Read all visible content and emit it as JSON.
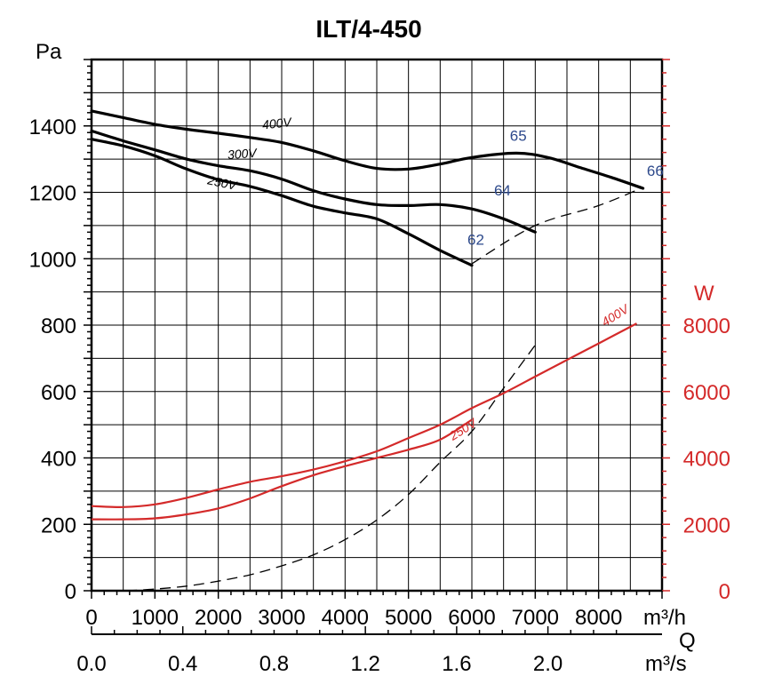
{
  "chart_data": {
    "type": "line",
    "title": "ILT/4-450",
    "ylabel": "Pa",
    "ylabel_right": "W",
    "xlabel_flow_label": "Q",
    "xlabel_m3h": "m³/h",
    "xlabel_m3s": "m³/s",
    "xlim": [
      0,
      9000
    ],
    "ylim": [
      0,
      1600
    ],
    "y2lim": [
      0,
      16000
    ],
    "y_ticks": [
      0,
      200,
      400,
      600,
      800,
      1000,
      1200,
      1400
    ],
    "y2_ticks": [
      0,
      2000,
      4000,
      6000,
      8000
    ],
    "x_ticks": [
      0,
      1000,
      2000,
      3000,
      4000,
      5000,
      6000,
      7000,
      8000
    ],
    "x2_ticks": [
      {
        "label": "0.0",
        "m3h": 0
      },
      {
        "label": "0.4",
        "m3h": 1440
      },
      {
        "label": "0.8",
        "m3h": 2880
      },
      {
        "label": "1.2",
        "m3h": 4320
      },
      {
        "label": "1.6",
        "m3h": 5760
      },
      {
        "label": "2.0",
        "m3h": 7200
      }
    ],
    "pressure_series": [
      {
        "name": "400V",
        "label_at": [
          2700,
          1390,
          -6
        ],
        "points": [
          [
            0,
            1445
          ],
          [
            500,
            1425
          ],
          [
            1000,
            1405
          ],
          [
            1500,
            1390
          ],
          [
            2000,
            1378
          ],
          [
            2500,
            1365
          ],
          [
            3000,
            1350
          ],
          [
            3500,
            1325
          ],
          [
            4000,
            1295
          ],
          [
            4500,
            1272
          ],
          [
            5000,
            1270
          ],
          [
            5500,
            1285
          ],
          [
            6000,
            1305
          ],
          [
            6700,
            1318
          ],
          [
            7200,
            1305
          ],
          [
            7700,
            1275
          ],
          [
            8200,
            1245
          ],
          [
            8700,
            1212
          ]
        ]
      },
      {
        "name": "300V",
        "label_at": [
          2150,
          1300,
          -4
        ],
        "points": [
          [
            0,
            1385
          ],
          [
            500,
            1355
          ],
          [
            1000,
            1328
          ],
          [
            1500,
            1300
          ],
          [
            2000,
            1280
          ],
          [
            2500,
            1265
          ],
          [
            3000,
            1240
          ],
          [
            3500,
            1205
          ],
          [
            4000,
            1180
          ],
          [
            4500,
            1163
          ],
          [
            5000,
            1160
          ],
          [
            5500,
            1163
          ],
          [
            6000,
            1150
          ],
          [
            6500,
            1120
          ],
          [
            7000,
            1080
          ]
        ]
      },
      {
        "name": "250V",
        "label_at": [
          1820,
          1225,
          12
        ],
        "points": [
          [
            0,
            1360
          ],
          [
            500,
            1340
          ],
          [
            1000,
            1310
          ],
          [
            1500,
            1270
          ],
          [
            2000,
            1238
          ],
          [
            2500,
            1218
          ],
          [
            3000,
            1190
          ],
          [
            3500,
            1158
          ],
          [
            4000,
            1138
          ],
          [
            4500,
            1120
          ],
          [
            5000,
            1075
          ],
          [
            5500,
            1025
          ],
          [
            6000,
            980
          ]
        ]
      }
    ],
    "power_series": [
      {
        "name": "400V",
        "label_at": [
          8100,
          7950,
          -32
        ],
        "points": [
          [
            0,
            2550
          ],
          [
            500,
            2520
          ],
          [
            1000,
            2600
          ],
          [
            1500,
            2800
          ],
          [
            2000,
            3050
          ],
          [
            2500,
            3280
          ],
          [
            3000,
            3450
          ],
          [
            3500,
            3650
          ],
          [
            4000,
            3900
          ],
          [
            4500,
            4200
          ],
          [
            5000,
            4600
          ],
          [
            5500,
            5000
          ],
          [
            6000,
            5500
          ],
          [
            6500,
            5950
          ],
          [
            7000,
            6450
          ],
          [
            7500,
            6950
          ],
          [
            8000,
            7450
          ],
          [
            8600,
            8050
          ]
        ]
      },
      {
        "name": "250V",
        "label_at": [
          5700,
          4520,
          -32
        ],
        "points": [
          [
            0,
            2150
          ],
          [
            500,
            2150
          ],
          [
            1000,
            2180
          ],
          [
            1500,
            2300
          ],
          [
            2000,
            2480
          ],
          [
            2500,
            2780
          ],
          [
            3000,
            3150
          ],
          [
            3500,
            3480
          ],
          [
            4000,
            3750
          ],
          [
            4500,
            4000
          ],
          [
            5000,
            4250
          ],
          [
            5500,
            4550
          ],
          [
            6000,
            5150
          ]
        ]
      }
    ],
    "dashed_lines": [
      {
        "name": "system-curve",
        "points": [
          [
            550,
            0
          ],
          [
            1000,
            50
          ],
          [
            1500,
            140
          ],
          [
            2000,
            290
          ],
          [
            2500,
            480
          ],
          [
            3000,
            750
          ],
          [
            3500,
            1080
          ],
          [
            4000,
            1540
          ],
          [
            4500,
            2130
          ],
          [
            5000,
            2900
          ],
          [
            5500,
            3870
          ],
          [
            6000,
            4800
          ],
          [
            6500,
            6100
          ],
          [
            7000,
            7400
          ]
        ]
      },
      {
        "name": "efficiency-line",
        "points": [
          [
            6000,
            985
          ],
          [
            7000,
            1100
          ],
          [
            8000,
            1160
          ],
          [
            8700,
            1215
          ]
        ]
      }
    ],
    "efficiency_labels": [
      {
        "text": "62",
        "x": 5930,
        "y": 1042
      },
      {
        "text": "64",
        "x": 6350,
        "y": 1190
      },
      {
        "text": "65",
        "x": 6600,
        "y": 1355
      },
      {
        "text": "66",
        "x": 8760,
        "y": 1250
      }
    ],
    "colors": {
      "pressure": "#000000",
      "power": "#d42a2a",
      "dashed": "#000000",
      "efficiency": "#2e4a8c",
      "grid": "#000000"
    }
  }
}
